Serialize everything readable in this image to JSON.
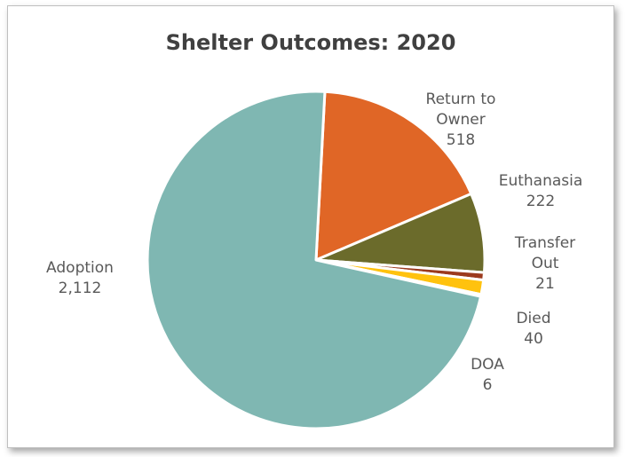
{
  "chart_data": {
    "type": "pie",
    "title": "Shelter Outcomes: 2020",
    "slices": [
      {
        "label": "Return to Owner",
        "value": 518,
        "value_label": "518",
        "color": "#e06626"
      },
      {
        "label": "Euthanasia",
        "value": 222,
        "value_label": "222",
        "color": "#6b6b2b"
      },
      {
        "label": "Transfer Out",
        "value": 21,
        "value_label": "21",
        "color": "#9c3a1e"
      },
      {
        "label": "Died",
        "value": 40,
        "value_label": "40",
        "color": "#ffc20e"
      },
      {
        "label": "DOA",
        "value": 6,
        "value_label": "6",
        "color": "#b8c7d8"
      },
      {
        "label": "Adoption",
        "value": 2112,
        "value_label": "2,112",
        "color": "#7fb7b2"
      }
    ],
    "legend": "none",
    "data_labels": "outside"
  }
}
